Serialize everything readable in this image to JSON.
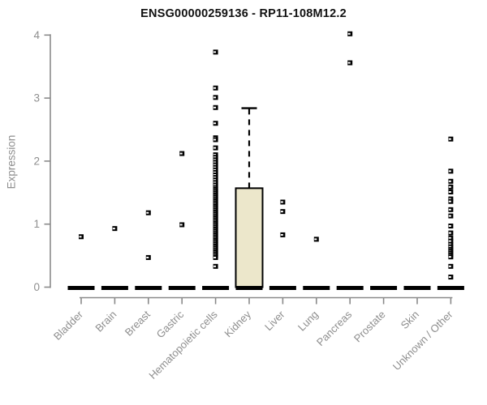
{
  "chart_data": {
    "type": "boxplot",
    "title": "ENSG00000259136 - RP11-108M12.2",
    "ylabel": "Expression",
    "xlabel": "",
    "ylim": [
      0,
      4
    ],
    "yticks": [
      0,
      1,
      2,
      3,
      4
    ],
    "grid": false,
    "legend": "none",
    "categories": [
      "Bladder",
      "Brain",
      "Breast",
      "Gastric",
      "Hematopoietic cells",
      "Kidney",
      "Liver",
      "Lung",
      "Pancreas",
      "Prostate",
      "Skin",
      "Unknown / Other"
    ],
    "boxes": [
      {
        "category": "Bladder",
        "q1": 0,
        "median": 0,
        "q3": 0,
        "whisker_low": 0,
        "whisker_high": 0
      },
      {
        "category": "Brain",
        "q1": 0,
        "median": 0,
        "q3": 0,
        "whisker_low": 0,
        "whisker_high": 0
      },
      {
        "category": "Breast",
        "q1": 0,
        "median": 0,
        "q3": 0,
        "whisker_low": 0,
        "whisker_high": 0
      },
      {
        "category": "Gastric",
        "q1": 0,
        "median": 0,
        "q3": 0,
        "whisker_low": 0,
        "whisker_high": 0
      },
      {
        "category": "Hematopoietic cells",
        "q1": 0,
        "median": 0,
        "q3": 0,
        "whisker_low": 0,
        "whisker_high": 0
      },
      {
        "category": "Kidney",
        "q1": 0,
        "median": 0,
        "q3": 1.57,
        "whisker_low": 0,
        "whisker_high": 2.84
      },
      {
        "category": "Liver",
        "q1": 0,
        "median": 0,
        "q3": 0,
        "whisker_low": 0,
        "whisker_high": 0
      },
      {
        "category": "Lung",
        "q1": 0,
        "median": 0,
        "q3": 0,
        "whisker_low": 0,
        "whisker_high": 0
      },
      {
        "category": "Pancreas",
        "q1": 0,
        "median": 0,
        "q3": 0,
        "whisker_low": 0,
        "whisker_high": 0
      },
      {
        "category": "Prostate",
        "q1": 0,
        "median": 0,
        "q3": 0,
        "whisker_low": 0,
        "whisker_high": 0
      },
      {
        "category": "Skin",
        "q1": 0,
        "median": 0,
        "q3": 0,
        "whisker_low": 0,
        "whisker_high": 0
      },
      {
        "category": "Unknown / Other",
        "q1": 0,
        "median": 0,
        "q3": 0,
        "whisker_low": 0,
        "whisker_high": 0
      }
    ],
    "outliers": [
      [
        0.8
      ],
      [
        0.93
      ],
      [
        1.18,
        0.47
      ],
      [
        2.12,
        0.99
      ],
      [
        3.73,
        3.16,
        3.01,
        2.85,
        2.6,
        2.37,
        2.34,
        2.21,
        2.1,
        2.06,
        2.02,
        1.98,
        1.94,
        1.9,
        1.86,
        1.82,
        1.78,
        1.74,
        1.7,
        1.66,
        1.62,
        1.58,
        1.55,
        1.52,
        1.49,
        1.46,
        1.43,
        1.4,
        1.37,
        1.34,
        1.31,
        1.28,
        1.25,
        1.22,
        1.19,
        1.16,
        1.13,
        1.1,
        1.07,
        1.04,
        1.01,
        0.98,
        0.95,
        0.92,
        0.89,
        0.86,
        0.83,
        0.8,
        0.77,
        0.74,
        0.71,
        0.68,
        0.65,
        0.62,
        0.59,
        0.56,
        0.53,
        0.5,
        0.47,
        0.33
      ],
      [],
      [
        1.35,
        1.2,
        0.83
      ],
      [
        0.76
      ],
      [
        4.02,
        3.56
      ],
      [],
      [],
      [
        2.35,
        1.84,
        1.68,
        1.59,
        1.51,
        1.4,
        1.36,
        1.23,
        1.13,
        0.97,
        0.86,
        0.78,
        0.73,
        0.68,
        0.64,
        0.6,
        0.57,
        0.54,
        0.51,
        0.48,
        0.33,
        0.16
      ]
    ],
    "colors": {
      "box_fill": "#ECE7CB",
      "box_border": "#000000",
      "median": "#000000",
      "whisker": "#000000",
      "outlier": "#000000",
      "axis": "#8a8a8a",
      "tick_label": "#8e8e8e",
      "title": "#111111"
    }
  }
}
